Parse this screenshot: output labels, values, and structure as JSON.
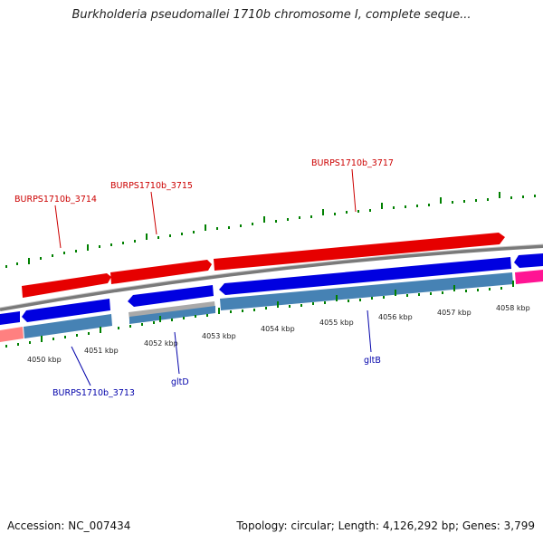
{
  "title": "Burkholderia pseudomallei 1710b chromosome I, complete seque...",
  "footer": {
    "accession": "Accession: NC_007434",
    "stats": "Topology: circular; Length: 4,126,292 bp; Genes: 3,799"
  },
  "colors": {
    "forward_gene": "#ff0000",
    "reverse_gene": "#0000ee",
    "rna_or_other": "#ff1493",
    "tick_green": "#008000",
    "label_red": "#cc0000",
    "label_blue": "#0000aa",
    "backbone": "#777777"
  },
  "scale_labels": [
    "4050 kbp",
    "4051 kbp",
    "4052 kbp",
    "4053 kbp",
    "4054 kbp",
    "4055 kbp",
    "4056 kbp",
    "4057 kbp",
    "4058 kbp"
  ],
  "gene_labels": {
    "upper": [
      "BURPS1710b_3714",
      "BURPS1710b_3715",
      "BURPS1710b_3717"
    ],
    "lower": [
      "BURPS1710b_3713",
      "gltD",
      "gltB"
    ]
  }
}
